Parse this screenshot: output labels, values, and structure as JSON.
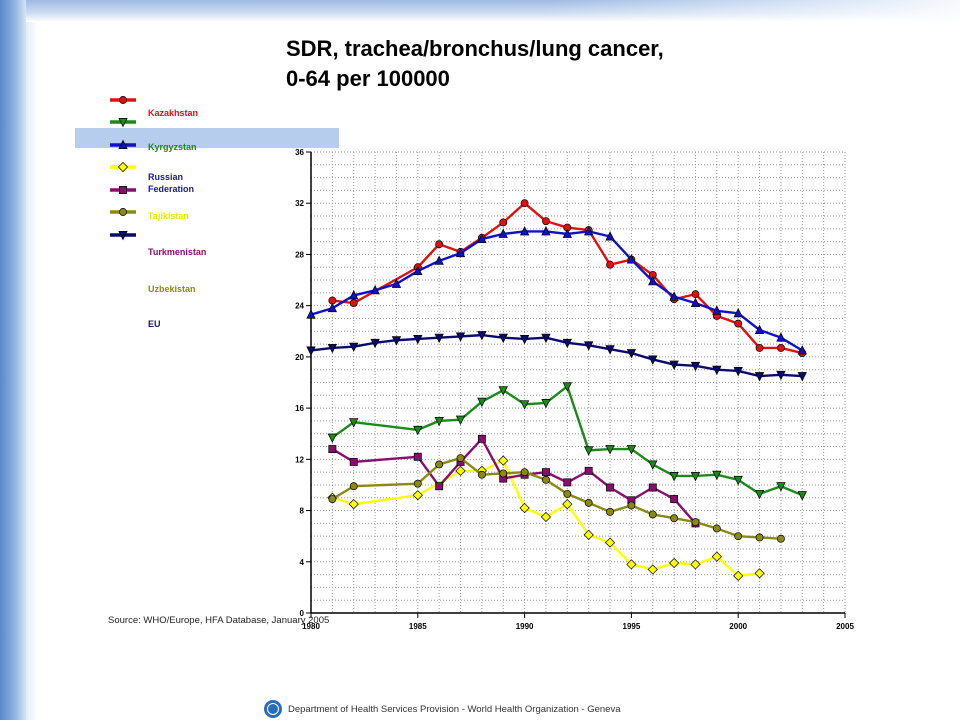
{
  "title": {
    "line1": "SDR, trachea/bronchus/lung cancer,",
    "line2": "0-64 per 100000"
  },
  "source": "Source: WHO/Europe, HFA Database, January 2005",
  "footer": "Department of Health Services Provision - World Health Organization - Geneva",
  "chart_data": {
    "type": "line",
    "title": "SDR, trachea/bronchus/lung cancer, 0-64 per 100000",
    "xlabel": "",
    "ylabel": "",
    "xlim": [
      1980,
      2005
    ],
    "ylim": [
      0,
      36
    ],
    "xticks": [
      1980,
      1985,
      1990,
      1995,
      2000,
      2005
    ],
    "yticks": [
      0,
      4,
      8,
      12,
      16,
      20,
      24,
      28,
      32,
      36
    ],
    "grid": true,
    "legend_position": "left",
    "series": [
      {
        "name": "Kazakhstan",
        "color": "#e01010",
        "label_color": "#e01010",
        "marker": "circle",
        "x": [
          1981,
          1982,
          1985,
          1986,
          1987,
          1988,
          1989,
          1990,
          1991,
          1992,
          1993,
          1994,
          1995,
          1996,
          1997,
          1998,
          1999,
          2000,
          2001,
          2002,
          2003
        ],
        "y": [
          24.4,
          24.2,
          27.0,
          28.8,
          28.2,
          29.3,
          30.5,
          32.0,
          30.6,
          30.1,
          29.9,
          27.2,
          27.6,
          26.4,
          24.5,
          24.9,
          23.2,
          22.6,
          20.7,
          20.7,
          20.3
        ]
      },
      {
        "name": "Kyrgyzstan",
        "color": "#1a8a1a",
        "label_color": "#1a8a1a",
        "marker": "triangle-down",
        "x": [
          1981,
          1982,
          1985,
          1986,
          1987,
          1988,
          1989,
          1990,
          1991,
          1992,
          1993,
          1994,
          1995,
          1996,
          1997,
          1998,
          1999,
          2000,
          2001,
          2002,
          2003
        ],
        "y": [
          13.7,
          14.9,
          14.3,
          15.0,
          15.1,
          16.5,
          17.4,
          16.3,
          16.4,
          17.7,
          12.7,
          12.8,
          12.8,
          11.6,
          10.7,
          10.7,
          10.8,
          10.4,
          9.3,
          9.9,
          9.2
        ]
      },
      {
        "name": "Russian Federation",
        "color": "#1010c8",
        "label_color": "#1a1a8a",
        "marker": "triangle-up",
        "x": [
          1980,
          1981,
          1982,
          1983,
          1984,
          1985,
          1986,
          1987,
          1988,
          1989,
          1990,
          1991,
          1992,
          1993,
          1994,
          1995,
          1996,
          1997,
          1998,
          1999,
          2000,
          2001,
          2002,
          2003
        ],
        "y": [
          23.3,
          23.8,
          24.8,
          25.2,
          25.7,
          26.7,
          27.5,
          28.1,
          29.2,
          29.6,
          29.8,
          29.8,
          29.6,
          29.8,
          29.4,
          27.6,
          25.9,
          24.7,
          24.2,
          23.6,
          23.4,
          22.1,
          21.5,
          20.5
        ]
      },
      {
        "name": "Tajikistan",
        "color": "#ffff00",
        "label_color": "#e8e800",
        "marker": "diamond",
        "x": [
          1981,
          1982,
          1985,
          1987,
          1988,
          1989,
          1990,
          1991,
          1992,
          1993,
          1994,
          1995,
          1996,
          1997,
          1998,
          1999,
          2000,
          2001
        ],
        "y": [
          9.0,
          8.5,
          9.2,
          11.1,
          11.1,
          11.9,
          8.2,
          7.5,
          8.5,
          6.1,
          5.5,
          3.8,
          3.4,
          3.9,
          3.8,
          4.4,
          2.9,
          3.1
        ]
      },
      {
        "name": "Turkmenistan",
        "color": "#880e6e",
        "label_color": "#880e6e",
        "marker": "square",
        "x": [
          1981,
          1982,
          1985,
          1986,
          1987,
          1988,
          1989,
          1990,
          1991,
          1992,
          1993,
          1994,
          1995,
          1996,
          1997,
          1998
        ],
        "y": [
          12.8,
          11.8,
          12.2,
          9.9,
          11.8,
          13.6,
          10.5,
          10.8,
          11.0,
          10.2,
          11.1,
          9.8,
          8.8,
          9.8,
          8.9,
          7.0
        ]
      },
      {
        "name": "Uzbekistan",
        "color": "#8a8a12",
        "label_color": "#8a8a12",
        "marker": "circle",
        "x": [
          1981,
          1982,
          1985,
          1986,
          1987,
          1988,
          1989,
          1990,
          1991,
          1992,
          1993,
          1994,
          1995,
          1996,
          1997,
          1998,
          1999,
          2000,
          2001,
          2002
        ],
        "y": [
          8.9,
          9.9,
          10.1,
          11.6,
          12.1,
          10.8,
          10.9,
          11.0,
          10.4,
          9.3,
          8.6,
          7.9,
          8.4,
          7.7,
          7.4,
          7.1,
          6.6,
          6.0,
          5.9,
          5.8
        ]
      },
      {
        "name": "EU",
        "color": "#0a0a6e",
        "label_color": "#1a1a60",
        "marker": "triangle-down",
        "x": [
          1980,
          1981,
          1982,
          1983,
          1984,
          1985,
          1986,
          1987,
          1988,
          1989,
          1990,
          1991,
          1992,
          1993,
          1994,
          1995,
          1996,
          1997,
          1998,
          1999,
          2000,
          2001,
          2002,
          2003
        ],
        "y": [
          20.5,
          20.7,
          20.8,
          21.1,
          21.3,
          21.4,
          21.5,
          21.6,
          21.7,
          21.5,
          21.4,
          21.5,
          21.1,
          20.9,
          20.6,
          20.3,
          19.8,
          19.4,
          19.3,
          19.0,
          18.9,
          18.5,
          18.6,
          18.5
        ]
      }
    ]
  }
}
